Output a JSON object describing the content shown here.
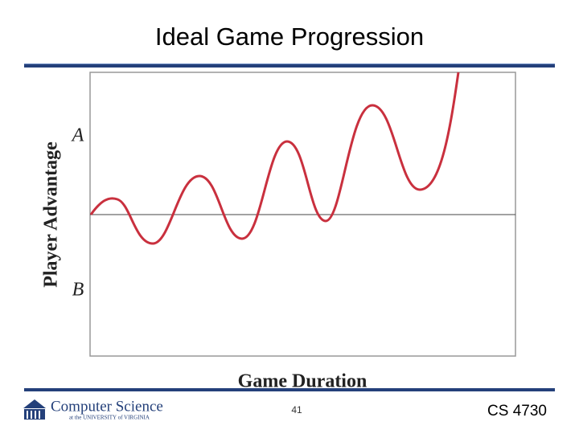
{
  "slide": {
    "title": "Ideal Game Progression",
    "figure": {
      "y_label": "Player Advantage",
      "x_label": "Game Duration",
      "y_top_label": "A",
      "y_bottom_label": "B"
    },
    "footer": {
      "logo_title": "Computer Science",
      "logo_subtitle": "at the UNIVERSITY of VIRGINIA",
      "page_number": "41",
      "course": "CS 4730"
    }
  }
}
